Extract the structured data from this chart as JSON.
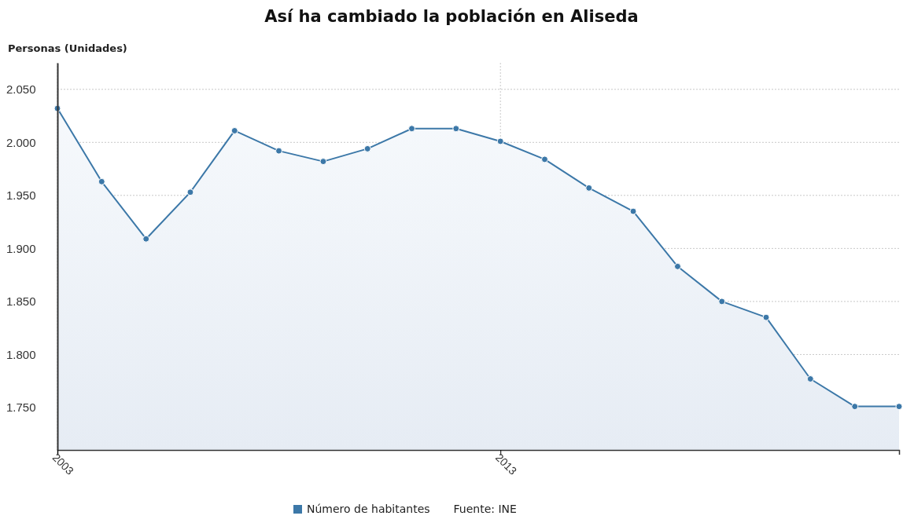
{
  "chart_data": {
    "type": "area",
    "title": "Así ha cambiado la población en Aliseda",
    "ylabel": "Personas (Unidades)",
    "x": [
      "2003",
      "2004",
      "2005",
      "2006",
      "2007",
      "2008",
      "2009",
      "2010",
      "2011",
      "2012",
      "2013",
      "2014",
      "2015",
      "2016",
      "2017",
      "2018",
      "2019",
      "2020",
      "2021",
      "2022"
    ],
    "series": [
      {
        "name": "Número de habitantes",
        "color": "#3c78a8",
        "values": [
          2032,
          1963,
          1909,
          1953,
          2011,
          1992,
          1982,
          1994,
          2013,
          2013,
          2001,
          1984,
          1957,
          1935,
          1883,
          1850,
          1835,
          1777,
          1751,
          1751
        ]
      }
    ],
    "xlim": [
      "2003",
      "2022"
    ],
    "xticks": [
      "2003",
      "2013"
    ],
    "ylim": [
      1710,
      2075
    ],
    "yticks": [
      {
        "value": 1750,
        "label": "1.750"
      },
      {
        "value": 1800,
        "label": "1.800"
      },
      {
        "value": 1850,
        "label": "1.850"
      },
      {
        "value": 1900,
        "label": "1.900"
      },
      {
        "value": 1950,
        "label": "1.950"
      },
      {
        "value": 2000,
        "label": "2.000"
      },
      {
        "value": 2050,
        "label": "2.050"
      }
    ],
    "grid": true,
    "legend": "bottom",
    "marker": "circle",
    "line_style": "solid",
    "annotations": [
      "Fuente: INE"
    ]
  }
}
